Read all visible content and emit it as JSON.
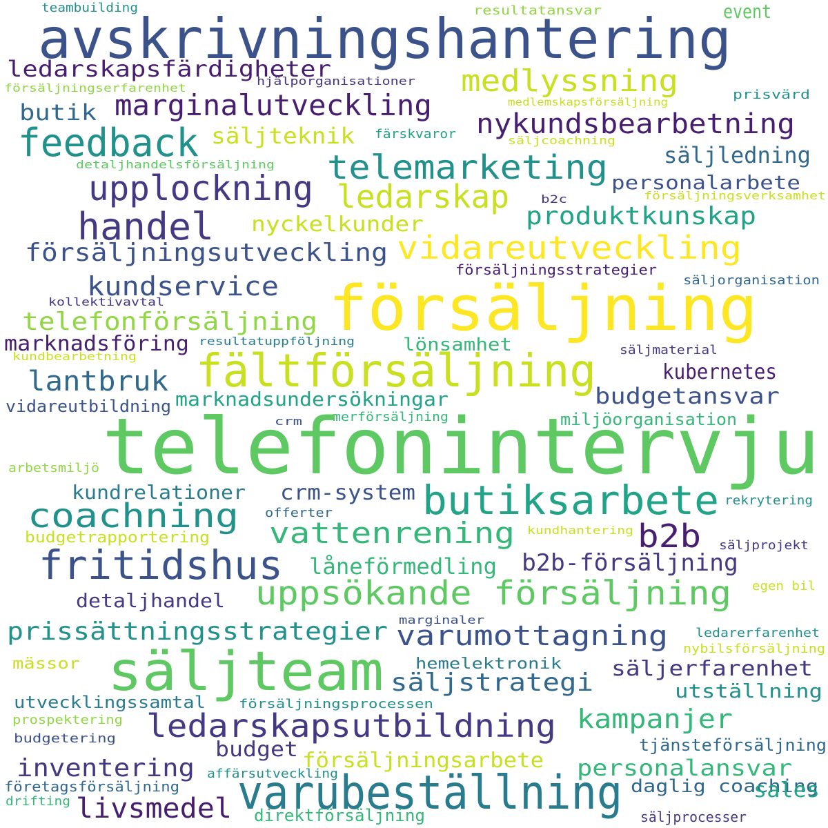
{
  "palette": {
    "dark_purple": "#481f70",
    "indigo": "#443983",
    "blue": "#3b528b",
    "steel": "#31688e",
    "teal": "#287c8e",
    "sea": "#21918c",
    "green_teal": "#20a386",
    "green": "#35b779",
    "lime_green": "#5ec962",
    "yellow_green": "#90d743",
    "lime": "#c8e020",
    "yellow": "#fde725"
  },
  "words": [
    "teambuilding",
    "resultatansvar",
    "event",
    "avskrivningshantering",
    "ledarskapsfärdigheter",
    "medlyssning",
    "hjälporganisationer",
    "försäljningserfarenhet",
    "prisvärd",
    "marginalutveckling",
    "medlemskapsförsäljning",
    "butik",
    "nykundsbearbetning",
    "feedback",
    "säljteknik",
    "färskvaror",
    "säljcoachning",
    "detaljhandelsförsäljning",
    "telemarketing",
    "säljledning",
    "upplockning",
    "personalarbete",
    "försäljningsverksamhet",
    "ledarskap",
    "b2c",
    "handel",
    "produktkunskap",
    "nyckelkunder",
    "försäljningsutveckling",
    "vidareutveckling",
    "försäljningsstrategier",
    "kundservice",
    "säljorganisation",
    "försäljning",
    "kollektivavtal",
    "telefonförsäljning",
    "marknadsföring",
    "resultatuppföljning",
    "lönsamhet",
    "fältförsäljning",
    "säljmaterial",
    "kundbearbetning",
    "lantbruk",
    "kubernetes",
    "budgetansvar",
    "marknadsundersökningar",
    "vidareutbildning",
    "crm",
    "merförsäljning",
    "miljöorganisation",
    "telefonintervju",
    "arbetsmiljö",
    "kundrelationer",
    "crm-system",
    "butiksarbete",
    "coachning",
    "rekrytering",
    "offerter",
    "vattenrening",
    "b2b",
    "budgetrapportering",
    "kundhantering",
    "säljprojekt",
    "fritidshus",
    "låneförmedling",
    "b2b-försäljning",
    "egen bil",
    "detaljhandel",
    "uppsökande försäljning",
    "marginaler",
    "prissättningsstrategier",
    "varumottagning",
    "ledarerfarenhet",
    "nybilsförsäljning",
    "mässor",
    "säljteam",
    "hemelektronik",
    "säljerfarenhet",
    "säljstrategi",
    "utställning",
    "utvecklingssamtal",
    "försäljningsprocessen",
    "kampanjer",
    "prospektering",
    "ledarskapsutbildning",
    "budgetering",
    "tjänsteförsäljning",
    "budget",
    "försäljningsarbete",
    "inventering",
    "personalansvar",
    "affärsutveckling",
    "företagsförsäljning",
    "varubeställning",
    "daglig coaching",
    "drifting",
    "livsmedel",
    "sales",
    "direktförsäljning",
    "säljprocesser"
  ]
}
